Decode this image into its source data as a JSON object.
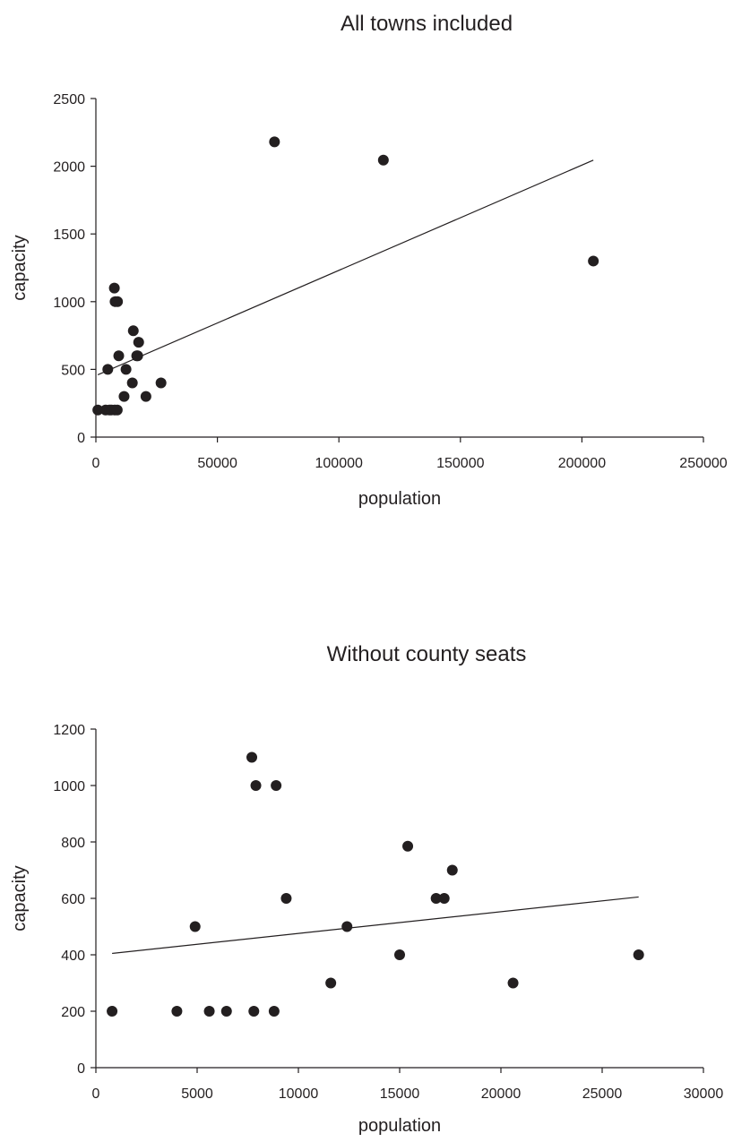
{
  "chart_data": [
    {
      "type": "scatter",
      "title": "All towns included",
      "xlabel": "population",
      "ylabel": "capacity",
      "xlim": [
        0,
        250000
      ],
      "ylim": [
        0,
        2500
      ],
      "xticks": [
        0,
        50000,
        100000,
        150000,
        200000,
        250000
      ],
      "yticks": [
        0,
        500,
        1000,
        1500,
        2000,
        2500
      ],
      "grid": false,
      "points": [
        {
          "x": 800,
          "y": 200
        },
        {
          "x": 4000,
          "y": 200
        },
        {
          "x": 4900,
          "y": 500
        },
        {
          "x": 5600,
          "y": 200
        },
        {
          "x": 6400,
          "y": 200
        },
        {
          "x": 7600,
          "y": 1100
        },
        {
          "x": 7800,
          "y": 200
        },
        {
          "x": 7900,
          "y": 1000
        },
        {
          "x": 8800,
          "y": 200
        },
        {
          "x": 8900,
          "y": 1000
        },
        {
          "x": 9400,
          "y": 600
        },
        {
          "x": 11600,
          "y": 300
        },
        {
          "x": 12400,
          "y": 500
        },
        {
          "x": 15000,
          "y": 400
        },
        {
          "x": 15400,
          "y": 785
        },
        {
          "x": 16800,
          "y": 600
        },
        {
          "x": 17200,
          "y": 600
        },
        {
          "x": 17600,
          "y": 700
        },
        {
          "x": 20600,
          "y": 300
        },
        {
          "x": 26800,
          "y": 400
        },
        {
          "x": 73500,
          "y": 2180
        },
        {
          "x": 118300,
          "y": 2045
        },
        {
          "x": 204700,
          "y": 1300
        }
      ],
      "trendline": {
        "x": [
          800,
          204700
        ],
        "y": [
          460,
          2045
        ]
      }
    },
    {
      "type": "scatter",
      "title": "Without county seats",
      "xlabel": "population",
      "ylabel": "capacity",
      "xlim": [
        0,
        30000
      ],
      "ylim": [
        0,
        1200
      ],
      "xticks": [
        0,
        5000,
        10000,
        15000,
        20000,
        25000,
        30000
      ],
      "yticks": [
        0,
        200,
        400,
        600,
        800,
        1000,
        1200
      ],
      "grid": false,
      "points": [
        {
          "x": 800,
          "y": 200
        },
        {
          "x": 4000,
          "y": 200
        },
        {
          "x": 4900,
          "y": 500
        },
        {
          "x": 5600,
          "y": 200
        },
        {
          "x": 6450,
          "y": 200
        },
        {
          "x": 7700,
          "y": 1100
        },
        {
          "x": 7800,
          "y": 200
        },
        {
          "x": 7900,
          "y": 1000
        },
        {
          "x": 8800,
          "y": 200
        },
        {
          "x": 8900,
          "y": 1000
        },
        {
          "x": 9400,
          "y": 600
        },
        {
          "x": 11600,
          "y": 300
        },
        {
          "x": 12400,
          "y": 500
        },
        {
          "x": 15000,
          "y": 400
        },
        {
          "x": 15400,
          "y": 785
        },
        {
          "x": 16800,
          "y": 600
        },
        {
          "x": 17200,
          "y": 600
        },
        {
          "x": 17600,
          "y": 700
        },
        {
          "x": 20600,
          "y": 300
        },
        {
          "x": 26800,
          "y": 400
        }
      ],
      "trendline": {
        "x": [
          800,
          26800
        ],
        "y": [
          405,
          605
        ]
      }
    }
  ]
}
